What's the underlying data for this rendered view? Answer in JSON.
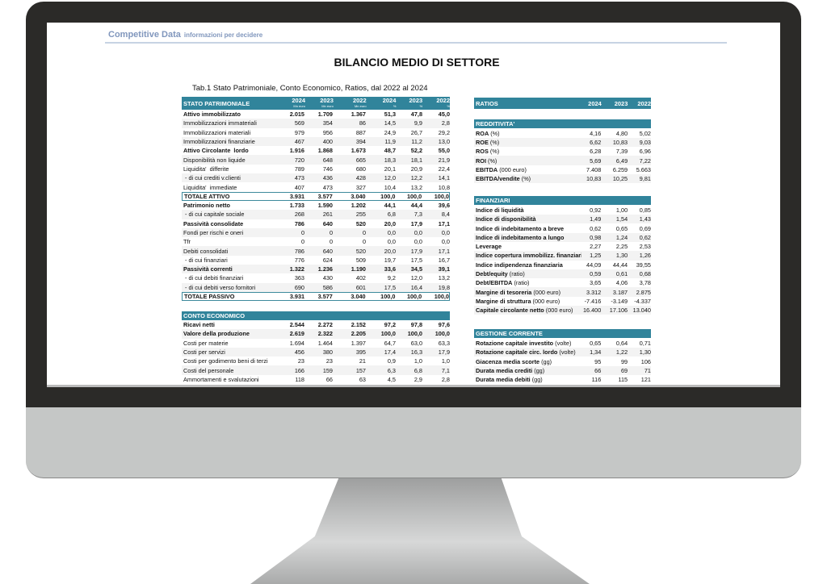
{
  "header": {
    "brand": "Competitive Data",
    "tagline": "informazioni per decidere",
    "title": "BILANCIO MEDIO DI SETTORE",
    "caption": "Tab.1 Stato Patrimoniale, Conto Economico, Ratios, dal 2022 al 2024"
  },
  "colors": {
    "header_bg": "#31849b",
    "bezel": "#2b2a28",
    "chin": "#c5c7c6"
  },
  "stato_patrimoniale": {
    "title": "STATO PATRIMONIALE",
    "columns": [
      {
        "year": "2024",
        "unit": "Mn euro"
      },
      {
        "year": "2023",
        "unit": "Mn euro"
      },
      {
        "year": "2022",
        "unit": "Mn euro"
      },
      {
        "year": "2024",
        "unit": "%"
      },
      {
        "year": "2023",
        "unit": "%"
      },
      {
        "year": "2022",
        "unit": "%"
      }
    ],
    "rows": [
      {
        "label": "Attivo immobilizzato",
        "style": "b",
        "values": [
          "2.015",
          "1.709",
          "1.367",
          "51,3",
          "47,8",
          "45,0"
        ]
      },
      {
        "label": "Immobilizzazioni immateriali",
        "values": [
          "569",
          "354",
          "86",
          "14,5",
          "9,9",
          "2,8"
        ]
      },
      {
        "label": "Immobilizzazioni materiali",
        "values": [
          "979",
          "956",
          "887",
          "24,9",
          "26,7",
          "29,2"
        ]
      },
      {
        "label": "Immobilizzazioni finanziarie",
        "values": [
          "467",
          "400",
          "394",
          "11,9",
          "11,2",
          "13,0"
        ]
      },
      {
        "label": "Attivo Circolante  lordo",
        "style": "b",
        "values": [
          "1.916",
          "1.868",
          "1.673",
          "48,7",
          "52,2",
          "55,0"
        ]
      },
      {
        "label": "Disponibilità non liquide",
        "values": [
          "720",
          "648",
          "665",
          "18,3",
          "18,1",
          "21,9"
        ]
      },
      {
        "label": "Liquidita'  differite",
        "values": [
          "789",
          "746",
          "680",
          "20,1",
          "20,9",
          "22,4"
        ]
      },
      {
        "label": " - di cui crediti v.clienti",
        "values": [
          "473",
          "436",
          "428",
          "12,0",
          "12,2",
          "14,1"
        ]
      },
      {
        "label": "Liquidita'  immediate",
        "values": [
          "407",
          "473",
          "327",
          "10,4",
          "13,2",
          "10,8"
        ]
      },
      {
        "label": "TOTALE ATTIVO",
        "style": "b box",
        "values": [
          "3.931",
          "3.577",
          "3.040",
          "100,0",
          "100,0",
          "100,0"
        ]
      },
      {
        "label": "Patrimonio netto",
        "style": "b",
        "values": [
          "1.733",
          "1.590",
          "1.202",
          "44,1",
          "44,4",
          "39,6"
        ]
      },
      {
        "label": " - di cui capitale sociale",
        "values": [
          "268",
          "261",
          "255",
          "6,8",
          "7,3",
          "8,4"
        ]
      },
      {
        "label": "Passività consolidate",
        "style": "b",
        "values": [
          "786",
          "640",
          "520",
          "20,0",
          "17,9",
          "17,1"
        ]
      },
      {
        "label": "Fondi per rischi e oneri",
        "values": [
          "0",
          "0",
          "0",
          "0,0",
          "0,0",
          "0,0"
        ]
      },
      {
        "label": "Tfr",
        "values": [
          "0",
          "0",
          "0",
          "0,0",
          "0,0",
          "0,0"
        ]
      },
      {
        "label": "Debiti consolidati",
        "values": [
          "786",
          "640",
          "520",
          "20,0",
          "17,9",
          "17,1"
        ]
      },
      {
        "label": " - di cui finanziari",
        "values": [
          "776",
          "624",
          "509",
          "19,7",
          "17,5",
          "16,7"
        ]
      },
      {
        "label": "Passività correnti",
        "style": "b",
        "values": [
          "1.322",
          "1.236",
          "1.190",
          "33,6",
          "34,5",
          "39,1"
        ]
      },
      {
        "label": " - di cui debiti finanziari",
        "values": [
          "363",
          "430",
          "402",
          "9,2",
          "12,0",
          "13,2"
        ]
      },
      {
        "label": " - di cui debiti verso fornitori",
        "values": [
          "690",
          "586",
          "601",
          "17,5",
          "16,4",
          "19,8"
        ]
      },
      {
        "label": "TOTALE PASSIVO",
        "style": "b box",
        "values": [
          "3.931",
          "3.577",
          "3.040",
          "100,0",
          "100,0",
          "100,0"
        ]
      }
    ]
  },
  "conto_economico": {
    "title": "CONTO ECONOMICO",
    "rows": [
      {
        "label": "Ricavi netti",
        "style": "b",
        "values": [
          "2.544",
          "2.272",
          "2.152",
          "97,2",
          "97,8",
          "97,6"
        ]
      },
      {
        "label": "Valore della produzione",
        "style": "b",
        "values": [
          "2.619",
          "2.322",
          "2.205",
          "100,0",
          "100,0",
          "100,0"
        ]
      },
      {
        "label": "Costi per materie",
        "values": [
          "1.694",
          "1.464",
          "1.397",
          "64,7",
          "63,0",
          "63,3"
        ]
      },
      {
        "label": "Costi per servizi",
        "values": [
          "456",
          "380",
          "395",
          "17,4",
          "16,3",
          "17,9"
        ]
      },
      {
        "label": "Costi per godimento beni di terzi",
        "values": [
          "23",
          "23",
          "21",
          "0,9",
          "1,0",
          "1,0"
        ]
      },
      {
        "label": "Costi del personale",
        "values": [
          "166",
          "159",
          "157",
          "6,3",
          "6,8",
          "7,1"
        ]
      },
      {
        "label": "Ammortamenti e svalutazioni",
        "values": [
          "118",
          "66",
          "63",
          "4,5",
          "2,9",
          "2,8"
        ]
      }
    ]
  },
  "ratios": {
    "title": "RATIOS",
    "years": [
      "2024",
      "2023",
      "2022"
    ],
    "sections": [
      {
        "title": "REDDITIVITA'",
        "rows": [
          {
            "label": "ROA",
            "unit": "(%)",
            "values": [
              "4,16",
              "4,80",
              "5,02"
            ]
          },
          {
            "label": "ROE",
            "unit": "(%)",
            "values": [
              "6,62",
              "10,83",
              "9,03"
            ]
          },
          {
            "label": "ROS",
            "unit": "(%)",
            "values": [
              "6,28",
              "7,39",
              "6,96"
            ]
          },
          {
            "label": "ROI",
            "unit": "(%)",
            "values": [
              "5,69",
              "6,49",
              "7,22"
            ]
          },
          {
            "label": "EBITDA",
            "unit": "(000 euro)",
            "values": [
              "7.408",
              "6.259",
              "5.663"
            ]
          },
          {
            "label": "EBITDA/vendite",
            "unit": "(%)",
            "values": [
              "10,83",
              "10,25",
              "9,81"
            ]
          }
        ]
      },
      {
        "title": "FINANZIARI",
        "rows": [
          {
            "label": "Indice di liquidità",
            "unit": "",
            "values": [
              "0,92",
              "1,00",
              "0,85"
            ]
          },
          {
            "label": "Indice di disponibilità",
            "unit": "",
            "values": [
              "1,49",
              "1,54",
              "1,43"
            ]
          },
          {
            "label": "Indice di indebitamento a breve",
            "unit": "",
            "values": [
              "0,62",
              "0,65",
              "0,69"
            ]
          },
          {
            "label": "Indice di indebitamento a lungo",
            "unit": "",
            "values": [
              "0,98",
              "1,24",
              "0,62"
            ]
          },
          {
            "label": "Leverage",
            "unit": "",
            "values": [
              "2,27",
              "2,25",
              "2,53"
            ]
          },
          {
            "label": "Indice copertura immobilizz. finanziarie",
            "unit": "",
            "values": [
              "1,25",
              "1,30",
              "1,26"
            ]
          },
          {
            "label": "Indice indipendenza finanziaria",
            "unit": "",
            "values": [
              "44,09",
              "44,44",
              "39,55"
            ]
          },
          {
            "label": "Debt/equity",
            "unit": "(ratio)",
            "values": [
              "0,59",
              "0,61",
              "0,68"
            ]
          },
          {
            "label": "Debt/EBITDA",
            "unit": "(ratio)",
            "values": [
              "3,65",
              "4,06",
              "3,78"
            ]
          },
          {
            "label": "Margine di tesoreria",
            "unit": "(000 euro)",
            "values": [
              "3.312",
              "3.187",
              "2.875"
            ]
          },
          {
            "label": "Margine di struttura",
            "unit": "(000 euro)",
            "values": [
              "-7.416",
              "-3.149",
              "-4.337"
            ]
          },
          {
            "label": "Capitale circolante netto",
            "unit": "(000 euro)",
            "values": [
              "16.400",
              "17.106",
              "13.040"
            ]
          }
        ]
      },
      {
        "title": "GESTIONE CORRENTE",
        "rows": [
          {
            "label": "Rotazione capitale investito",
            "unit": "(volte)",
            "values": [
              "0,65",
              "0,64",
              "0,71"
            ]
          },
          {
            "label": "Rotazione capitale circ. lordo",
            "unit": "(volte)",
            "values": [
              "1,34",
              "1,22",
              "1,30"
            ]
          },
          {
            "label": "Giacenza media scorte",
            "unit": "(gg)",
            "values": [
              "95",
              "99",
              "106"
            ]
          },
          {
            "label": "Durata media crediti",
            "unit": "(gg)",
            "values": [
              "66",
              "69",
              "71"
            ]
          },
          {
            "label": "Durata media debiti",
            "unit": "(gg)",
            "values": [
              "116",
              "115",
              "121"
            ]
          }
        ]
      }
    ]
  }
}
